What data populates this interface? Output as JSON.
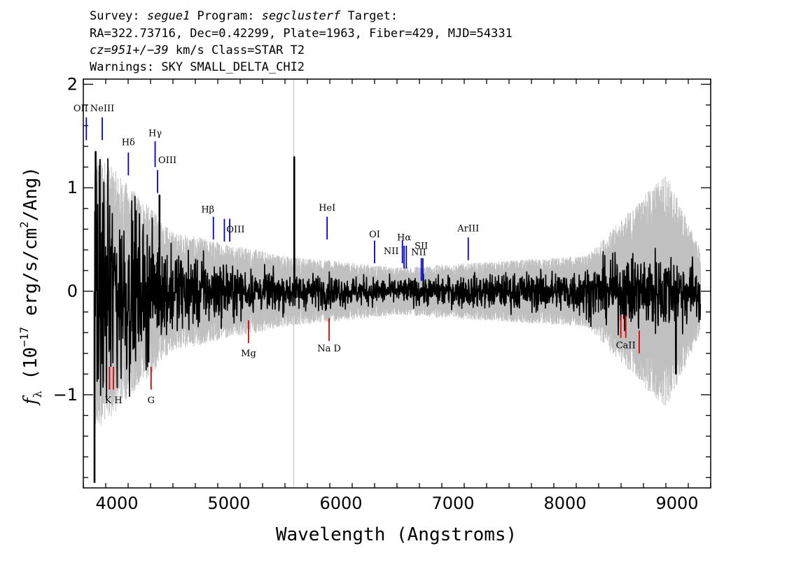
{
  "header": {
    "line1": {
      "survey_label": "Survey: ",
      "survey": "segue1",
      "program_label": " Program: ",
      "program": "segclusterf",
      "target_label": " Target:"
    },
    "line2": "RA=322.73716, Dec=0.42299, Plate=1963, Fiber=429, MJD=54331",
    "line3": {
      "cz": "cz=951+/−39",
      "rest": " km/s Class=STAR T2"
    },
    "line4": "Warnings: SKY SMALL_DELTA_CHI2"
  },
  "colors": {
    "flux": "#000000",
    "error_band": "#c0c0c0",
    "emission": "#0000cc",
    "absorption": "#dd0000",
    "frame": "#000000"
  },
  "chart_data": {
    "type": "line",
    "xlabel": "Wavelength (Angstroms)",
    "ylabel": "f_λ (10^-17 erg/s/cm^2/Ang)",
    "xlim": [
      3700,
      9300
    ],
    "ylim": [
      -1.9,
      2.05
    ],
    "x_ticks": [
      4000,
      5000,
      6000,
      7000,
      8000,
      9000
    ],
    "y_ticks": [
      -1,
      0,
      1,
      2
    ],
    "x_tick_labels": [
      "4000",
      "5000",
      "6000",
      "7000",
      "8000",
      "9000"
    ],
    "y_tick_labels": [
      "−1",
      "0",
      "1",
      "2"
    ],
    "sky_line_x": 5578,
    "series": [
      {
        "key": "flux",
        "x_start": 3800,
        "x_end": 9210,
        "approx_noise": [
          [
            3800,
            0.6
          ],
          [
            4400,
            0.22
          ],
          [
            5200,
            0.1
          ],
          [
            6500,
            0.06
          ],
          [
            8000,
            0.1
          ],
          [
            8800,
            0.2
          ],
          [
            9210,
            0.15
          ]
        ],
        "spikes": [
          [
            3800,
            -1.85
          ],
          [
            3810,
            1.35
          ],
          [
            4380,
            0.93
          ],
          [
            5583,
            1.3
          ],
          [
            8990,
            -0.8
          ]
        ]
      },
      {
        "key": "error_band",
        "half_width_approx": [
          [
            3800,
            1.2
          ],
          [
            4500,
            0.5
          ],
          [
            5500,
            0.3
          ],
          [
            6500,
            0.2
          ],
          [
            8200,
            0.3
          ],
          [
            8900,
            1.0
          ],
          [
            9210,
            0.35
          ]
        ]
      }
    ],
    "emission_lines": [
      {
        "label": "OII",
        "x": 3727,
        "y0": 1.46,
        "y1": 1.68,
        "label_y": 1.74,
        "label_dx": -8
      },
      {
        "label": "NeIII",
        "x": 3869,
        "y0": 1.46,
        "y1": 1.68,
        "label_y": 1.74,
        "label_dx": 0
      },
      {
        "label": "Hδ",
        "x": 4102,
        "y0": 1.12,
        "y1": 1.34,
        "label_y": 1.41,
        "label_dx": 0
      },
      {
        "label": "Hγ",
        "x": 4341,
        "y0": 1.2,
        "y1": 1.45,
        "label_y": 1.5,
        "label_dx": 0
      },
      {
        "label": "OIII",
        "x": 4363,
        "y0": 0.95,
        "y1": 1.17,
        "label_y": 1.24,
        "label_dx": 14
      },
      {
        "label": "Hβ",
        "x": 4861,
        "y0": 0.5,
        "y1": 0.72,
        "label_y": 0.76,
        "label_dx": -8
      },
      {
        "label": "OIII",
        "x": 4959,
        "y0": 0.48,
        "y1": 0.7,
        "label_y": 0.57,
        "label_dx": 16
      },
      {
        "label": "OIII",
        "x": 5007,
        "y0": 0.48,
        "y1": 0.7,
        "label_y": -99,
        "label_dx": 0
      },
      {
        "label": "HeI",
        "x": 5876,
        "y0": 0.5,
        "y1": 0.72,
        "label_y": 0.78,
        "label_dx": 0
      },
      {
        "label": "OI",
        "x": 6300,
        "y0": 0.27,
        "y1": 0.49,
        "label_y": 0.52,
        "label_dx": 0
      },
      {
        "label": "NII",
        "x": 6548,
        "y0": 0.27,
        "y1": 0.49,
        "label_y": 0.36,
        "label_dx": -16
      },
      {
        "label": "Hα",
        "x": 6563,
        "y0": 0.22,
        "y1": 0.44,
        "label_y": 0.49,
        "label_dx": 0
      },
      {
        "label": "NII",
        "x": 6583,
        "y0": 0.22,
        "y1": 0.44,
        "label_y": -99,
        "label_dx": 0
      },
      {
        "label": "SII",
        "x": 6717,
        "y0": 0.1,
        "y1": 0.32,
        "label_y": 0.41,
        "label_dx": 0
      },
      {
        "label": "NII",
        "x": 6731,
        "y0": 0.1,
        "y1": 0.32,
        "label_y": 0.35,
        "label_dx": -6
      },
      {
        "label": "ArIII",
        "x": 7136,
        "y0": 0.3,
        "y1": 0.52,
        "label_y": 0.58,
        "label_dx": 0
      }
    ],
    "absorption_lines": [
      {
        "label": "",
        "x": 3934,
        "y0": -0.95,
        "y1": -0.73
      },
      {
        "label": "K H",
        "x": 3969,
        "y0": -0.95,
        "y1": -0.73,
        "label_y": -1.08,
        "label_dx": 0
      },
      {
        "label": "G",
        "x": 4305,
        "y0": -0.95,
        "y1": -0.73,
        "label_y": -1.08,
        "label_dx": 0
      },
      {
        "label": "Mg",
        "x": 5175,
        "y0": -0.5,
        "y1": -0.28,
        "label_y": -0.63,
        "label_dx": 0
      },
      {
        "label": "Na D",
        "x": 5894,
        "y0": -0.48,
        "y1": -0.26,
        "label_y": -0.58,
        "label_dx": 0
      },
      {
        "label": "",
        "x": 8498,
        "y0": -0.45,
        "y1": -0.23
      },
      {
        "label": "CaII",
        "x": 8542,
        "y0": -0.45,
        "y1": -0.23,
        "label_y": -0.55,
        "label_dx": 0
      },
      {
        "label": "",
        "x": 8662,
        "y0": -0.6,
        "y1": -0.38
      }
    ]
  }
}
